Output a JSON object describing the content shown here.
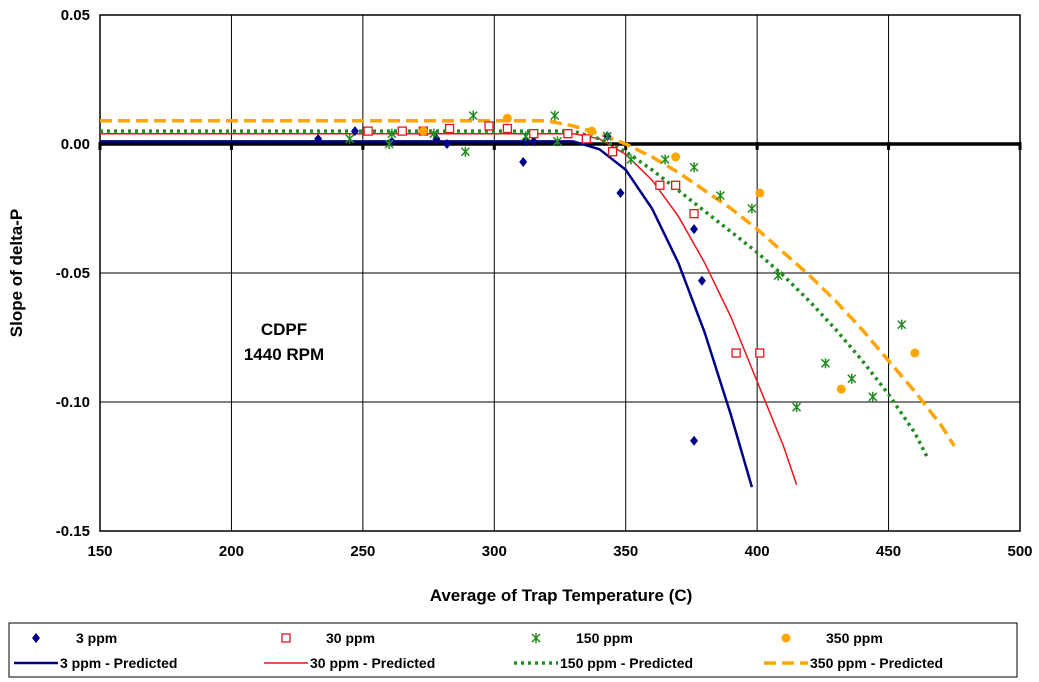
{
  "chart_data": {
    "type": "scatter",
    "xlabel": "Average of Trap Temperature  (C)",
    "ylabel": "Slope of delta-P",
    "xlim": [
      150,
      500
    ],
    "ylim": [
      -0.15,
      0.05
    ],
    "x_ticks": [
      "150",
      "200",
      "250",
      "300",
      "350",
      "400",
      "450",
      "500"
    ],
    "y_ticks": [
      "0.05",
      "0.00",
      "-0.05",
      "-0.10",
      "-0.15"
    ],
    "grid": true,
    "legend_position": "bottom",
    "annotations": [
      "CDPF",
      "1440 RPM"
    ],
    "series": [
      {
        "name": "3 ppm",
        "kind": "marker",
        "marker": "diamond",
        "color": "#00008b",
        "x": [
          233,
          247,
          261,
          278,
          282,
          311,
          312,
          315,
          343,
          348,
          376,
          379,
          376
        ],
        "y": [
          0.002,
          0.005,
          0.001,
          0.002,
          0.0,
          -0.007,
          0.001,
          0.001,
          0.003,
          -0.019,
          -0.033,
          -0.053,
          -0.115
        ]
      },
      {
        "name": "30 ppm",
        "kind": "marker",
        "marker": "open-square",
        "color": "#e8141c",
        "x": [
          252,
          265,
          273,
          283,
          298,
          305,
          315,
          328,
          335,
          345,
          363,
          369,
          376,
          392,
          401
        ],
        "y": [
          0.005,
          0.005,
          0.005,
          0.006,
          0.007,
          0.006,
          0.004,
          0.004,
          0.002,
          -0.003,
          -0.016,
          -0.016,
          -0.027,
          -0.081,
          -0.081
        ]
      },
      {
        "name": "150 ppm",
        "kind": "marker",
        "marker": "asterisk",
        "color": "#228b22",
        "x": [
          245,
          260,
          261,
          277,
          289,
          292,
          312,
          323,
          324,
          343,
          352,
          365,
          376,
          386,
          398,
          408,
          415,
          426,
          436,
          444,
          455
        ],
        "y": [
          0.002,
          0.0,
          0.004,
          0.004,
          -0.003,
          0.011,
          0.003,
          0.011,
          0.001,
          0.003,
          -0.006,
          -0.006,
          -0.009,
          -0.02,
          -0.025,
          -0.051,
          -0.102,
          -0.085,
          -0.091,
          -0.098,
          -0.07
        ]
      },
      {
        "name": "350 ppm",
        "kind": "marker",
        "marker": "circle",
        "color": "#ffa500",
        "x": [
          273,
          305,
          337,
          369,
          401,
          432,
          460
        ],
        "y": [
          0.005,
          0.01,
          0.005,
          -0.005,
          -0.019,
          -0.095,
          -0.081
        ]
      },
      {
        "name": "3 ppm - Predicted",
        "kind": "line",
        "style": "solid-thick",
        "color": "#00008b",
        "x": [
          150,
          330,
          340,
          350,
          360,
          370,
          380,
          390,
          398
        ],
        "y": [
          0.001,
          0.001,
          -0.002,
          -0.01,
          -0.025,
          -0.046,
          -0.073,
          -0.105,
          -0.133
        ]
      },
      {
        "name": "30 ppm - Predicted",
        "kind": "line",
        "style": "solid-thin",
        "color": "#e8141c",
        "x": [
          150,
          330,
          340,
          350,
          360,
          370,
          380,
          390,
          400,
          410,
          415
        ],
        "y": [
          0.004,
          0.004,
          0.002,
          -0.004,
          -0.014,
          -0.028,
          -0.046,
          -0.067,
          -0.092,
          -0.117,
          -0.132
        ]
      },
      {
        "name": "150 ppm - Predicted",
        "kind": "line",
        "style": "dotted",
        "color": "#228b22",
        "x": [
          150,
          330,
          340,
          350,
          360,
          370,
          380,
          390,
          400,
          410,
          420,
          430,
          440,
          450,
          460,
          465
        ],
        "y": [
          0.005,
          0.005,
          0.002,
          -0.003,
          -0.01,
          -0.018,
          -0.026,
          -0.034,
          -0.042,
          -0.051,
          -0.061,
          -0.072,
          -0.084,
          -0.097,
          -0.112,
          -0.122
        ]
      },
      {
        "name": "350 ppm - Predicted",
        "kind": "line",
        "style": "dashed",
        "color": "#ffa500",
        "x": [
          150,
          320,
          330,
          340,
          350,
          360,
          370,
          380,
          390,
          400,
          410,
          420,
          430,
          440,
          450,
          460,
          470,
          475
        ],
        "y": [
          0.009,
          0.009,
          0.007,
          0.004,
          0.0,
          -0.005,
          -0.011,
          -0.018,
          -0.025,
          -0.033,
          -0.042,
          -0.051,
          -0.061,
          -0.072,
          -0.084,
          -0.096,
          -0.109,
          -0.117
        ]
      }
    ]
  }
}
